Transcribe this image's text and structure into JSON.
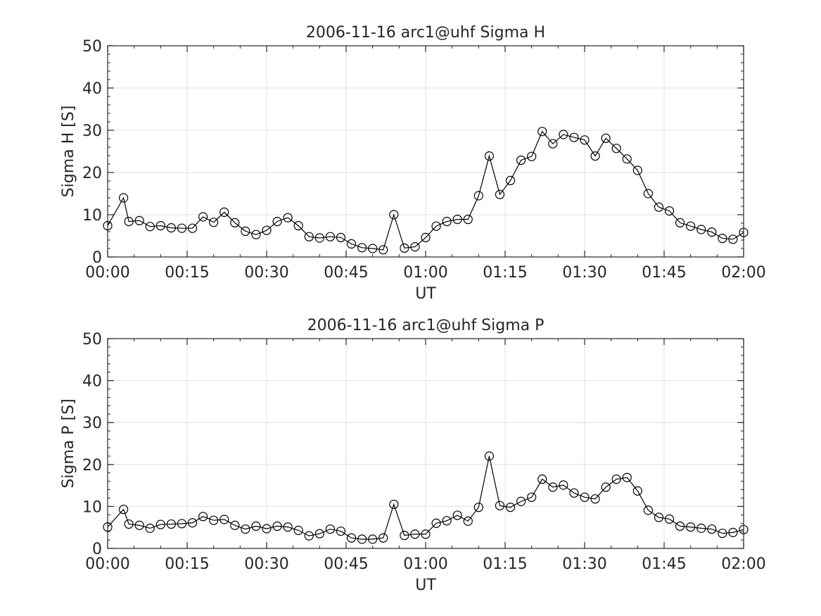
{
  "chart_data": [
    {
      "type": "line",
      "title": "2006-11-16  arc1@uhf Sigma H",
      "xlabel": "UT",
      "ylabel": "Sigma H [S]",
      "xlim": [
        0,
        120
      ],
      "ylim": [
        0,
        50
      ],
      "grid": true,
      "xticks": [
        0,
        15,
        30,
        45,
        60,
        75,
        90,
        105,
        120
      ],
      "xtick_labels": [
        "00:00",
        "00:15",
        "00:30",
        "00:45",
        "01:00",
        "01:15",
        "01:30",
        "01:45",
        "02:00"
      ],
      "yticks": [
        0,
        10,
        20,
        30,
        40,
        50
      ],
      "ytick_labels": [
        "0",
        "10",
        "20",
        "30",
        "40",
        "50"
      ],
      "x": [
        0,
        3,
        4,
        6,
        8,
        10,
        12,
        14,
        16,
        18,
        20,
        22,
        24,
        26,
        28,
        30,
        32,
        34,
        36,
        38,
        40,
        42,
        44,
        46,
        48,
        50,
        52,
        54,
        56,
        58,
        60,
        62,
        64,
        66,
        68,
        70,
        72,
        74,
        76,
        78,
        80,
        82,
        84,
        86,
        88,
        90,
        92,
        94,
        96,
        98,
        100,
        102,
        104,
        106,
        108,
        110,
        112,
        114,
        116,
        118,
        120
      ],
      "values": [
        7.4,
        14.0,
        8.4,
        8.6,
        7.2,
        7.4,
        6.9,
        6.8,
        6.8,
        9.5,
        8.2,
        10.6,
        8.1,
        6.1,
        5.3,
        6.3,
        8.4,
        9.3,
        7.4,
        4.8,
        4.5,
        4.8,
        4.6,
        3.1,
        2.2,
        2.0,
        1.7,
        10.0,
        2.1,
        2.4,
        4.6,
        7.3,
        8.4,
        8.9,
        8.9,
        14.5,
        23.9,
        14.8,
        18.1,
        22.9,
        23.8,
        29.7,
        26.8,
        29.0,
        28.3,
        27.7,
        23.9,
        28.1,
        25.7,
        23.2,
        20.5,
        15.0,
        11.8,
        10.9,
        8.1,
        7.3,
        6.5,
        5.9,
        4.4,
        4.2,
        5.8
      ]
    },
    {
      "type": "line",
      "title": "2006-11-16  arc1@uhf Sigma P",
      "xlabel": "UT",
      "ylabel": "Sigma P [S]",
      "xlim": [
        0,
        120
      ],
      "ylim": [
        0,
        50
      ],
      "grid": true,
      "xticks": [
        0,
        15,
        30,
        45,
        60,
        75,
        90,
        105,
        120
      ],
      "xtick_labels": [
        "00:00",
        "00:15",
        "00:30",
        "00:45",
        "01:00",
        "01:15",
        "01:30",
        "01:45",
        "02:00"
      ],
      "yticks": [
        0,
        10,
        20,
        30,
        40,
        50
      ],
      "ytick_labels": [
        "0",
        "10",
        "20",
        "30",
        "40",
        "50"
      ],
      "x": [
        0,
        3,
        4,
        6,
        8,
        10,
        12,
        14,
        16,
        18,
        20,
        22,
        24,
        26,
        28,
        30,
        32,
        34,
        36,
        38,
        40,
        42,
        44,
        46,
        48,
        50,
        52,
        54,
        56,
        58,
        60,
        62,
        64,
        66,
        68,
        70,
        72,
        74,
        76,
        78,
        80,
        82,
        84,
        86,
        88,
        90,
        92,
        94,
        96,
        98,
        100,
        102,
        104,
        106,
        108,
        110,
        112,
        114,
        116,
        118,
        120
      ],
      "values": [
        5.1,
        9.3,
        5.8,
        5.5,
        4.8,
        5.7,
        5.8,
        5.9,
        6.1,
        7.6,
        6.7,
        6.9,
        5.5,
        4.6,
        5.3,
        4.7,
        5.3,
        5.1,
        4.3,
        3.0,
        3.5,
        4.6,
        4.1,
        2.5,
        2.2,
        2.2,
        2.5,
        10.5,
        3.1,
        3.4,
        3.4,
        6.0,
        6.6,
        7.9,
        6.5,
        9.8,
        22.0,
        10.2,
        9.8,
        11.2,
        12.2,
        16.5,
        14.6,
        15.1,
        13.2,
        12.2,
        11.8,
        14.6,
        16.5,
        16.9,
        13.7,
        9.1,
        7.4,
        7.0,
        5.3,
        5.1,
        4.8,
        4.6,
        3.6,
        3.8,
        4.5
      ]
    }
  ]
}
